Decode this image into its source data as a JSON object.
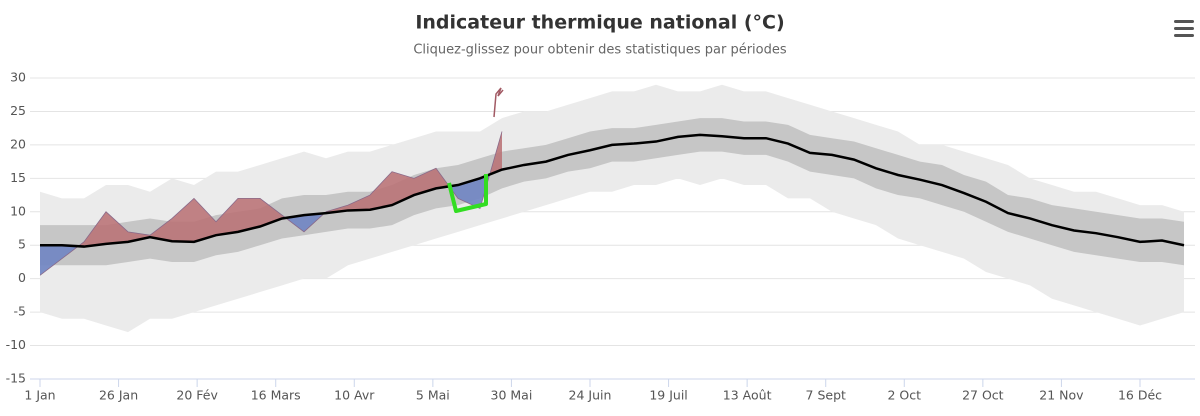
{
  "chart_data": {
    "type": "area",
    "title": "Indicateur thermique national (°C)",
    "subtitle": "Cliquez-glissez pour obtenir des statistiques par périodes",
    "x": [
      0,
      7,
      14,
      21,
      28,
      35,
      42,
      49,
      56,
      63,
      70,
      77,
      84,
      91,
      98,
      105,
      112,
      119,
      126,
      133,
      140,
      147,
      154,
      161,
      168,
      175,
      182,
      189,
      196,
      203,
      210,
      217,
      224,
      231,
      238,
      245,
      252,
      259,
      266,
      273,
      280,
      287,
      294,
      301,
      308,
      315,
      322,
      329,
      336,
      343,
      350,
      357,
      364
    ],
    "xlim": [
      0,
      364
    ],
    "xticks": [
      {
        "value": 0,
        "label": "1 Jan"
      },
      {
        "value": 25,
        "label": "26 Jan"
      },
      {
        "value": 50,
        "label": "20 Fév"
      },
      {
        "value": 75,
        "label": "16 Mars"
      },
      {
        "value": 100,
        "label": "10 Avr"
      },
      {
        "value": 125,
        "label": "5 Mai"
      },
      {
        "value": 150,
        "label": "30 Mai"
      },
      {
        "value": 175,
        "label": "24 Juin"
      },
      {
        "value": 200,
        "label": "19 Juil"
      },
      {
        "value": 225,
        "label": "13 Août"
      },
      {
        "value": 250,
        "label": "7 Sept"
      },
      {
        "value": 275,
        "label": "2 Oct"
      },
      {
        "value": 300,
        "label": "27 Oct"
      },
      {
        "value": 325,
        "label": "21 Nov"
      },
      {
        "value": 350,
        "label": "16 Déc"
      }
    ],
    "ylim": [
      -15,
      30
    ],
    "yticks": [
      -15,
      -10,
      -5,
      0,
      5,
      10,
      15,
      20,
      25,
      30
    ],
    "grid": true,
    "series": [
      {
        "type": "arearange",
        "color": "#ebebeb",
        "low": [
          -5,
          -6,
          -6,
          -7,
          -8,
          -6,
          -6,
          -5,
          -4,
          -3,
          -2,
          -1,
          0,
          0,
          2,
          3,
          4,
          5,
          6,
          7,
          8,
          9,
          10,
          11,
          12,
          13,
          13,
          14,
          14,
          15,
          14,
          15,
          14,
          14,
          12,
          12,
          10,
          9,
          8,
          6,
          5,
          4,
          3,
          1,
          0,
          -1,
          -3,
          -4,
          -5,
          -6,
          -7,
          -6,
          -5
        ],
        "high": [
          13,
          12,
          12,
          14,
          14,
          13,
          15,
          14,
          16,
          16,
          17,
          18,
          19,
          18,
          19,
          19,
          20,
          21,
          22,
          22,
          22,
          24,
          25,
          25,
          26,
          27,
          28,
          28,
          29,
          28,
          28,
          29,
          28,
          28,
          27,
          26,
          25,
          24,
          23,
          22,
          20,
          20,
          19,
          18,
          17,
          15,
          14,
          13,
          13,
          12,
          11,
          11,
          10
        ]
      },
      {
        "type": "arearange",
        "color": "#c6c6c6",
        "low": [
          2,
          2,
          2,
          2,
          2.5,
          3,
          2.5,
          2.5,
          3.5,
          4,
          5,
          6,
          6.5,
          7,
          7.5,
          7.5,
          8,
          9.5,
          10.5,
          11,
          12,
          13.5,
          14.5,
          15,
          16,
          16.5,
          17.5,
          17.5,
          18,
          18.5,
          19,
          19,
          18.5,
          18.5,
          17.5,
          16,
          15.5,
          15,
          13.5,
          12.5,
          12,
          11,
          10,
          8.5,
          7,
          6,
          5,
          4,
          3.5,
          3,
          2.5,
          2.5,
          2
        ],
        "high": [
          8,
          8,
          8,
          8,
          8.5,
          9,
          8.5,
          8.5,
          9.5,
          10,
          10.5,
          12,
          12.5,
          12.5,
          13,
          13,
          14,
          15.5,
          16.5,
          17,
          18,
          19,
          19.5,
          20,
          21,
          22,
          22.5,
          22.5,
          23,
          23.5,
          24,
          24,
          23.5,
          23.5,
          23,
          21.5,
          21,
          20.5,
          19.5,
          18.5,
          17.5,
          17,
          15.5,
          14.5,
          12.5,
          12,
          11,
          10.5,
          10,
          9.5,
          9,
          9,
          8.5
        ]
      },
      {
        "type": "line",
        "color": "#000000",
        "values": [
          5,
          5,
          4.8,
          5.2,
          5.5,
          6.2,
          5.6,
          5.5,
          6.5,
          7,
          7.8,
          9,
          9.5,
          9.8,
          10.2,
          10.3,
          11,
          12.5,
          13.5,
          14,
          15,
          16.3,
          17,
          17.5,
          18.5,
          19.2,
          20,
          20.2,
          20.5,
          21.2,
          21.5,
          21.3,
          21,
          21,
          20.2,
          18.8,
          18.5,
          17.8,
          16.5,
          15.5,
          14.8,
          14,
          12.8,
          11.5,
          9.8,
          9,
          8,
          7.2,
          6.8,
          6.2,
          5.5,
          5.7,
          5
        ]
      },
      {
        "type": "anomaly",
        "color": "#b86f72",
        "negative_color": "#6f84c2",
        "values": [
          0.5,
          3,
          5.5,
          10,
          7,
          6.5,
          9,
          12,
          8.5,
          12,
          12,
          9.5,
          7,
          10,
          11,
          12.5,
          16,
          15,
          16.5,
          12,
          10.5,
          22,
          null,
          null,
          null,
          null,
          null,
          null,
          null,
          null,
          null,
          null,
          null,
          null,
          null,
          null,
          null,
          null,
          null,
          null,
          null,
          null,
          null,
          null,
          null,
          null,
          null,
          null,
          null,
          null,
          null,
          null,
          null
        ]
      }
    ]
  }
}
